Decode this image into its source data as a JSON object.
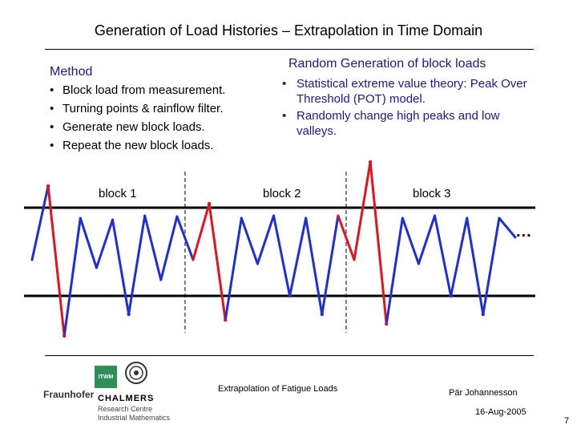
{
  "title": "Generation of Load Histories – Extrapolation in Time Domain",
  "method": {
    "heading": "Method",
    "items": [
      "Block load from measurement.",
      "Turning points & rainflow filter.",
      "Generate new block loads.",
      "Repeat the new block loads."
    ]
  },
  "random": {
    "heading": "Random Generation of block loads",
    "items": [
      "Statistical extreme value theory: Peak Over Threshold (POT) model.",
      "Randomly change high peaks and low valleys."
    ]
  },
  "bullet": "•",
  "blocks": [
    "block 1",
    "block 2",
    "block 3"
  ],
  "ellipsis": "...",
  "footer": {
    "center": "Extrapolation of Fatigue Loads",
    "author": "Pär Johannesson",
    "date": "16-Aug-2005",
    "page": "7"
  },
  "logos": {
    "fraunhofer": "Fraunhofer",
    "itwm": "ITWM",
    "chalmers": "CHALMERS",
    "research_centre": "Research Centre",
    "industrial_math": "Industrial Mathematics"
  },
  "colors": {
    "accent": "#1a1a8c",
    "signal": "#1f2fd6",
    "modified": "#e0141e"
  },
  "chart_data": {
    "type": "line",
    "title": "",
    "xlabel": "",
    "ylabel": "",
    "ylim": [
      -1.15,
      1.15
    ],
    "thresholds": [
      0.55,
      -0.55
    ],
    "segments_per_block": 10,
    "x": [
      0,
      1,
      2,
      3,
      4,
      5,
      6,
      7,
      8,
      9,
      10,
      11,
      12,
      13,
      14,
      15,
      16,
      17,
      18,
      19,
      20,
      21,
      22,
      23,
      24,
      25,
      26,
      27,
      28,
      29,
      30
    ],
    "series": [
      {
        "name": "block load",
        "values": [
          -0.1,
          0.82,
          -1.05,
          0.42,
          -0.2,
          0.4,
          -0.78,
          0.45,
          -0.35,
          0.44,
          -0.1,
          0.6,
          -0.85,
          0.42,
          -0.15,
          0.45,
          -0.55,
          0.42,
          -0.78,
          0.45,
          -0.1,
          1.12,
          -0.9,
          0.42,
          -0.15,
          0.45,
          -0.55,
          0.42,
          -0.78,
          0.42,
          0.18
        ]
      }
    ],
    "modified_points": [
      1,
      2,
      10,
      11,
      12,
      19,
      20,
      21,
      22,
      29
    ]
  }
}
